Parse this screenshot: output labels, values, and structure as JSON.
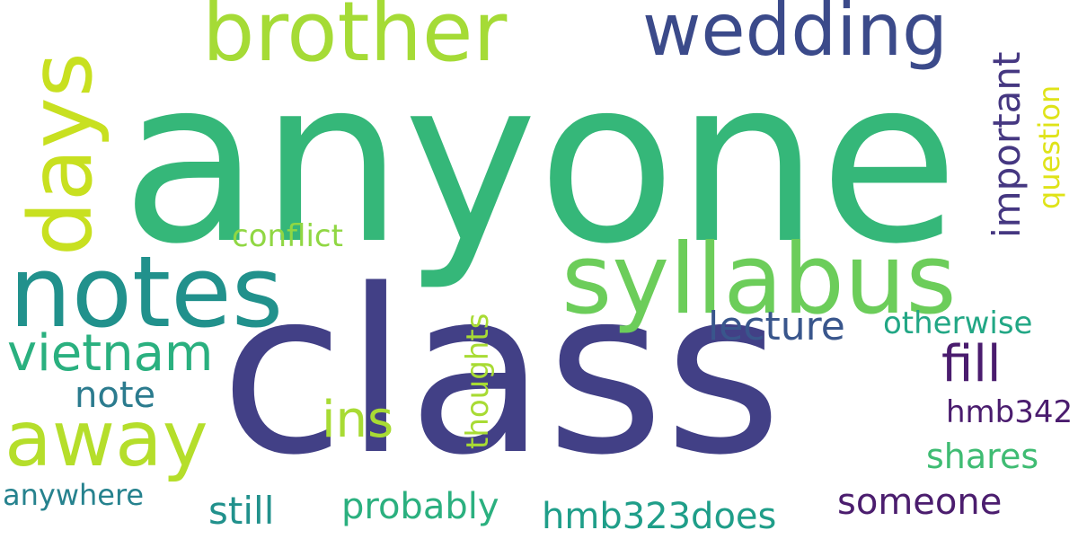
{
  "words": {
    "anyone": "anyone",
    "class": "class",
    "syllabus": "syllabus",
    "notes": "notes",
    "brother": "brother",
    "wedding": "wedding",
    "days": "days",
    "away": "away",
    "vietnam": "vietnam",
    "fill": "fill",
    "ins": "ins",
    "lecture": "lecture",
    "otherwise": "otherwise",
    "note": "note",
    "conflict": "conflict",
    "important": "important",
    "question": "question",
    "thoughts": "thoughts",
    "hmb342": "hmb342",
    "shares": "shares",
    "someone": "someone",
    "hmb323does": "hmb323does",
    "probably": "probably",
    "still": "still",
    "anywhere": "anywhere"
  },
  "colors": {
    "background": "#ffffff",
    "palette": "viridis"
  }
}
